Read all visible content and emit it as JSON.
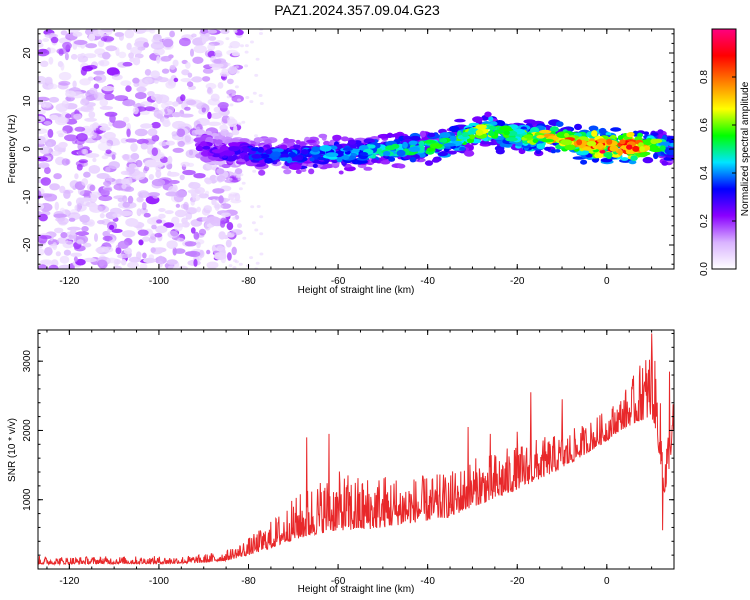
{
  "title": "PAZ1.2024.357.09.04.G23",
  "chart_data": [
    {
      "type": "heatmap",
      "xlabel": "Height of straight line (km)",
      "ylabel": "Frequency (Hz)",
      "xlim": [
        -127,
        15
      ],
      "ylim": [
        -25,
        25
      ],
      "xticks": [
        -120,
        -100,
        -80,
        -60,
        -40,
        -20,
        0
      ],
      "yticks": [
        -20,
        -10,
        0,
        10,
        20
      ],
      "colorbar": {
        "label": "Normalized spectral amplitude",
        "range": [
          0,
          1
        ],
        "ticks": [
          0.0,
          0.2,
          0.4,
          0.6,
          0.8
        ],
        "colormap": [
          "#ffffff",
          "#d9b3ff",
          "#8a00ff",
          "#0000ff",
          "#00e5ff",
          "#00ff00",
          "#ffff00",
          "#ff8000",
          "#ff0000",
          "#ff0080"
        ]
      },
      "ridge": {
        "x": [
          -91,
          -85,
          -80,
          -75,
          -70,
          -65,
          -60,
          -55,
          -50,
          -45,
          -40,
          -35,
          -30,
          -27,
          -22,
          -18,
          -15,
          -10,
          -5,
          0,
          5,
          10,
          15
        ],
        "freq": [
          0.5,
          -1,
          -1,
          -1.5,
          -1.5,
          -1,
          -1,
          -1,
          0,
          0,
          0.5,
          1.5,
          3,
          4,
          3,
          2.5,
          2.5,
          2,
          1,
          0.5,
          0.5,
          1,
          0
        ],
        "amplitude": [
          0.25,
          0.3,
          0.35,
          0.4,
          0.4,
          0.4,
          0.45,
          0.45,
          0.5,
          0.5,
          0.55,
          0.55,
          0.6,
          0.65,
          0.6,
          0.6,
          0.7,
          0.8,
          0.85,
          0.95,
          0.95,
          0.7,
          0.4
        ]
      },
      "noise_region_x": [
        -127,
        -85
      ]
    },
    {
      "type": "line",
      "xlabel": "Height of straight line (km)",
      "ylabel": "SNR (10 * v/v)",
      "xlim": [
        -127,
        15
      ],
      "ylim": [
        0,
        3450
      ],
      "xticks": [
        -120,
        -100,
        -80,
        -60,
        -40,
        -20,
        0
      ],
      "yticks": [
        1000,
        2000,
        3000
      ],
      "series": [
        {
          "color": "#e8282a",
          "envelope": {
            "x": [
              -127,
              -120,
              -110,
              -100,
              -95,
              -90,
              -85,
              -80,
              -75,
              -70,
              -65,
              -60,
              -55,
              -50,
              -45,
              -40,
              -35,
              -30,
              -25,
              -20,
              -15,
              -10,
              -5,
              0,
              3,
              6,
              8,
              10,
              11,
              12,
              13,
              14,
              15
            ],
            "base": [
              70,
              70,
              75,
              75,
              80,
              90,
              120,
              200,
              300,
              420,
              500,
              560,
              560,
              600,
              650,
              700,
              750,
              900,
              1000,
              1150,
              1300,
              1450,
              1650,
              1850,
              2000,
              2100,
              2150,
              2200,
              2000,
              1500,
              1000,
              1500,
              2000
            ],
            "spread": [
              120,
              110,
              110,
              110,
              110,
              120,
              150,
              250,
              400,
              600,
              800,
              850,
              800,
              800,
              700,
              650,
              650,
              700,
              700,
              650,
              600,
              500,
              450,
              450,
              500,
              700,
              900,
              1100,
              900,
              900,
              800,
              700,
              500
            ]
          },
          "peaks": [
            {
              "x": -67,
              "y": 1900
            },
            {
              "x": -62,
              "y": 1950
            },
            {
              "x": -31,
              "y": 2050
            },
            {
              "x": -26,
              "y": 1950
            },
            {
              "x": -20,
              "y": 1980
            },
            {
              "x": -17,
              "y": 2550
            },
            {
              "x": -10,
              "y": 2450
            },
            {
              "x": 8,
              "y": 2900
            },
            {
              "x": 10,
              "y": 3400
            },
            {
              "x": 14,
              "y": 2850
            },
            {
              "x": 12.5,
              "y": 560
            }
          ]
        }
      ]
    }
  ]
}
